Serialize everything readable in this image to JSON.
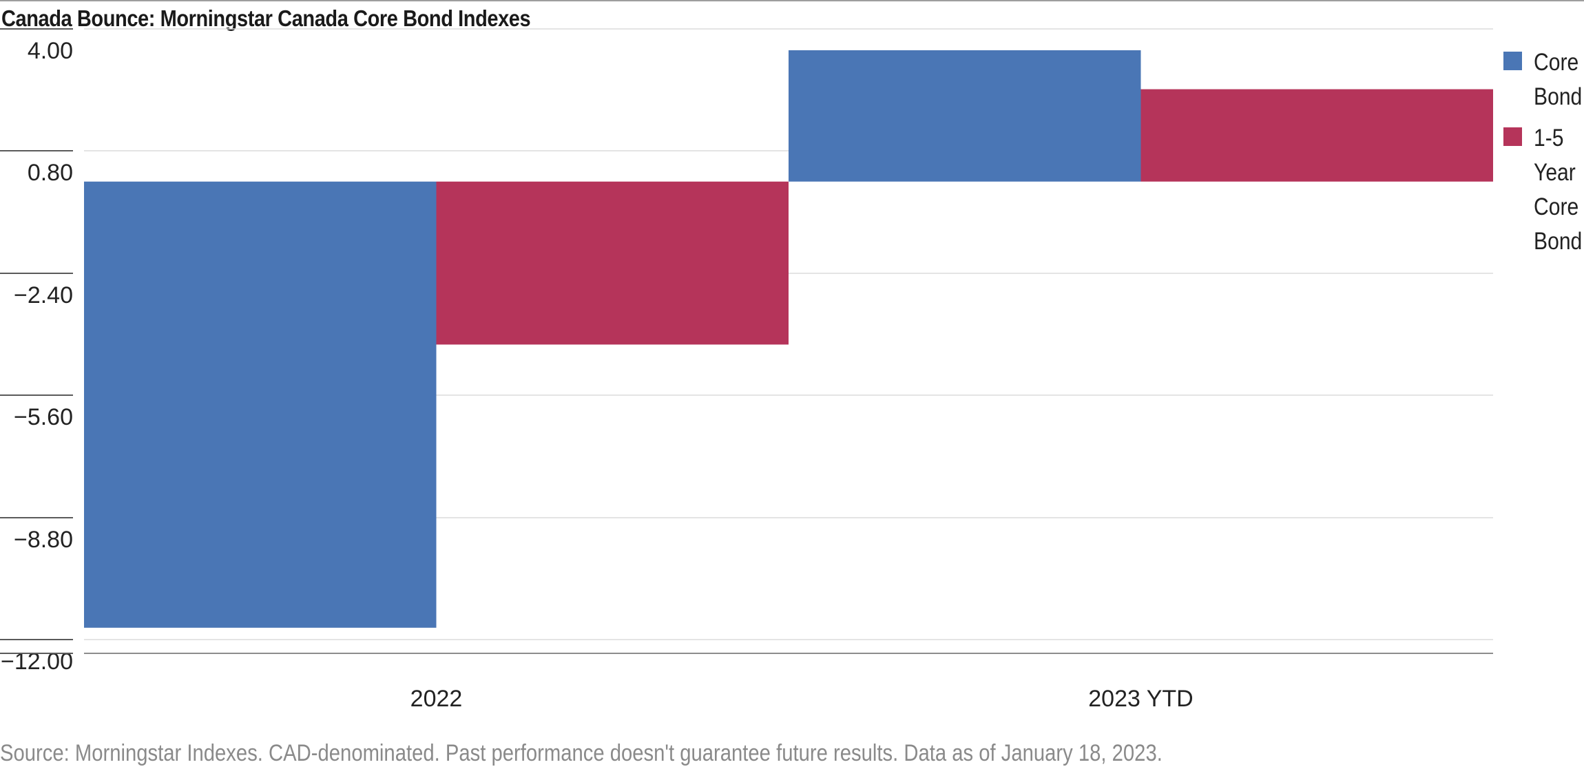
{
  "title": "Canada Bounce: Morningstar Canada Core Bond Indexes",
  "source": "Source: Morningstar Indexes. CAD-denominated. Past performance doesn't guarantee future results. Data as of January 18, 2023.",
  "colors": {
    "core_bond": "#4a76b5",
    "one_five_year": "#b5345a",
    "grid": "#dcdcdc",
    "axis": "#8c8c8c"
  },
  "chart_data": {
    "type": "bar",
    "title": "Canada Bounce: Morningstar Canada Core Bond Indexes",
    "categories": [
      "2022",
      "2023 YTD"
    ],
    "series": [
      {
        "name": "Core Bond",
        "values": [
          -11.69,
          4.0
        ]
      },
      {
        "name": "1-5 Year Core Bond",
        "values": [
          -4.27,
          2.42
        ]
      }
    ],
    "yticks": [
      4.0,
      0.8,
      -2.4,
      -5.6,
      -8.8,
      -12.0
    ],
    "ytick_labels": [
      "4.00",
      "0.80",
      "−2.40",
      "−5.60",
      "−8.80",
      "−12.00"
    ],
    "ylim": [
      -12.0,
      4.0
    ],
    "baseline": 0,
    "xlabel": "",
    "ylabel": "",
    "grid": true,
    "legend": "right"
  }
}
